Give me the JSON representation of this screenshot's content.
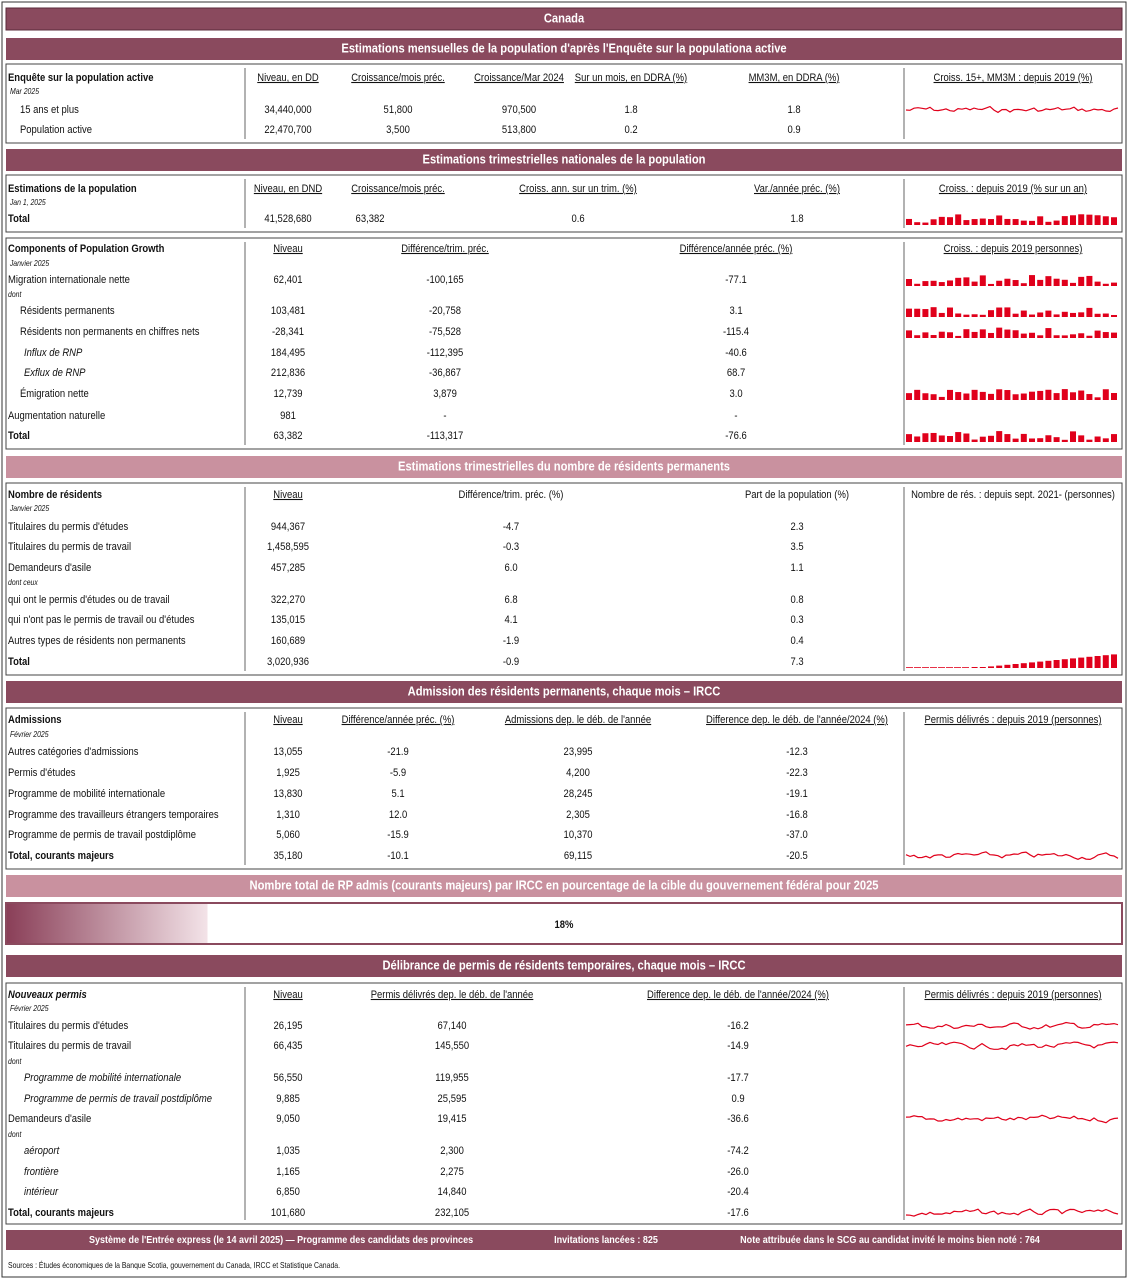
{
  "title": "Canada",
  "sections": [
    {
      "title": "Estimations mensuelles de la population d'après l'Enquête sur la populationa active",
      "blocks": [
        {
          "headers": [
            "Enquête sur la population active",
            "Niveau, en DD",
            "Croissance/mois préc.",
            "Croissance/Mar 2024",
            "Sur un mois, en DDRA (%)",
            "MM3M, en DDRA (%)",
            "Croiss. 15+, MM3M : depuis 2019 (%)"
          ],
          "note": "Mar 2025",
          "rows": [
            [
              "15 ans et plus",
              "34,440,000",
              "51,800",
              "970,500",
              "1.8",
              "1.8"
            ],
            [
              "Population active",
              "22,470,700",
              "3,500",
              "513,800",
              "0.2",
              "0.9"
            ]
          ]
        }
      ]
    },
    {
      "title": "Estimations trimestrielles nationales de la population",
      "blocks": [
        {
          "headers": [
            "Estimations de la population",
            "Niveau, en DND",
            "Croissance/mois préc.",
            "Croiss. ann. sur un trim. (%)",
            "Var./année préc. (%)",
            "Croiss. : depuis 2019 (% sur un an)"
          ],
          "note": "Jan 1, 2025",
          "rows": [
            [
              "Total",
              "41,528,680",
              "63,382",
              "0.6",
              "1.8"
            ]
          ]
        },
        {
          "headers": [
            "Components of Population Growth",
            "Niveau",
            "Différence/trim. préc.",
            "Différence/année préc. (%)",
            "Croiss. : depuis 2019 personnes)"
          ],
          "note": "Janvier 2025",
          "rows": [
            [
              "Migration internationale nette",
              "62,401",
              "-100,165",
              "-77.1"
            ],
            [
              "dont"
            ],
            [
              "Résidents permanents",
              "103,481",
              "-20,758",
              "3.1"
            ],
            [
              "Résidents non permanents en chiffres nets",
              "-28,341",
              "-75,528",
              "-115.4"
            ],
            [
              "Influx de RNP",
              "184,495",
              "-112,395",
              "-40.6"
            ],
            [
              "Exflux de RNP",
              "212,836",
              "-36,867",
              "68.7"
            ],
            [
              "Émigration nette",
              "12,739",
              "3,879",
              "3.0"
            ],
            [
              "Augmentation naturelle",
              "981",
              "-",
              "-"
            ],
            [
              "Total",
              "63,382",
              "-113,317",
              "-76.6"
            ]
          ]
        }
      ]
    },
    {
      "title": "Estimations trimestrielles du nombre de résidents permanents",
      "blocks": [
        {
          "headers": [
            "Nombre de résidents",
            "Niveau",
            "Différence/trim. préc. (%)",
            "Part de la population (%)",
            "Nombre de rés. : depuis sept. 2021- (personnes)"
          ],
          "note": "Janvier 2025",
          "rows": [
            [
              "Titulaires du permis d'études",
              "944,367",
              "-4.7",
              "2.3"
            ],
            [
              "Titulaires du permis de travail",
              "1,458,595",
              "-0.3",
              "3.5"
            ],
            [
              "Demandeurs d'asile",
              "457,285",
              "6.0",
              "1.1"
            ],
            [
              "dont ceux"
            ],
            [
              "qui ont le permis d'études ou de travail",
              "322,270",
              "6.8",
              "0.8"
            ],
            [
              "qui n'ont pas le permis de travail ou d'études",
              "135,015",
              "4.1",
              "0.3"
            ],
            [
              "Autres types de résidents non permanents",
              "160,689",
              "-1.9",
              "0.4"
            ],
            [
              "Total",
              "3,020,936",
              "-0.9",
              "7.3"
            ]
          ]
        }
      ]
    },
    {
      "title": "Admission des résidents permanents, chaque mois – IRCC",
      "blocks": [
        {
          "headers": [
            "Admissions",
            "Niveau",
            "Différence/année préc. (%)",
            "Admissions dep. le déb. de l'année",
            "Difference dep. le déb. de l'année/2024 (%)",
            "Permis délivrés : depuis 2019 (personnes)"
          ],
          "note": "Février 2025",
          "rows": [
            [
              "Autres catégories d'admissions",
              "13,055",
              "-21.9",
              "23,995",
              "-12.3"
            ],
            [
              "Permis d'études",
              "1,925",
              "-5.9",
              "4,200",
              "-22.3"
            ],
            [
              "Programme de mobilité internationale",
              "13,830",
              "5.1",
              "28,245",
              "-19.1"
            ],
            [
              "Programme des travailleurs étrangers temporaires",
              "1,310",
              "12.0",
              "2,305",
              "-16.8"
            ],
            [
              "Programme de permis de travail postdiplôme",
              "5,060",
              "-15.9",
              "10,370",
              "-37.0"
            ],
            [
              "Total, courants majeurs",
              "35,180",
              "-10.1",
              "69,115",
              "-20.5"
            ]
          ]
        }
      ]
    },
    {
      "title": "Nombre total de RP admis (courants majeurs) par IRCC en pourcentage de la cible du gouvernement fédéral pour 2025",
      "progress": {
        "value": 18,
        "label": "18%"
      }
    },
    {
      "title": "Délibrance de permis de résidents temporaires, chaque mois – IRCC",
      "blocks": [
        {
          "headers": [
            "Nouveaux permis",
            "Niveau",
            "Permis délivrés dep. le déb. de l'année",
            "Difference dep. le déb. de l'année/2024 (%)",
            "Permis délivrés : depuis 2019 (personnes)"
          ],
          "note": "Février 2025",
          "rows": [
            [
              "Titulaires du permis d'études",
              "26,195",
              "67,140",
              "-16.2"
            ],
            [
              "Titulaires du permis de travail",
              "66,435",
              "145,550",
              "-14.9"
            ],
            [
              "dont"
            ],
            [
              "Programme de mobilité internationale",
              "56,550",
              "119,955",
              "-17.7"
            ],
            [
              "Programme de permis de travail postdiplôme",
              "9,885",
              "25,595",
              "0.9"
            ],
            [
              "Demandeurs d'asile",
              "9,050",
              "19,415",
              "-36.6"
            ],
            [
              "dont"
            ],
            [
              "aéroport",
              "1,035",
              "2,300",
              "-74.2"
            ],
            [
              "frontière",
              "1,165",
              "2,275",
              "-26.0"
            ],
            [
              "intérieur",
              "6,850",
              "14,840",
              "-20.4"
            ],
            [
              "Total, courants majeurs",
              "101,680",
              "232,105",
              "-17.6"
            ]
          ]
        }
      ]
    }
  ],
  "footer": [
    "Système de l'Entrée express (le 14 avril 2025) — Programme des candidats des provinces",
    "Invitations lancées : 825",
    "Note attribuée dans le SCG au candidat invité le moins bien noté : 764"
  ],
  "sources": "Sources : Études économiques de la Banque Scotia, gouvernement du Canada, IRCC et Statistique Canada."
}
